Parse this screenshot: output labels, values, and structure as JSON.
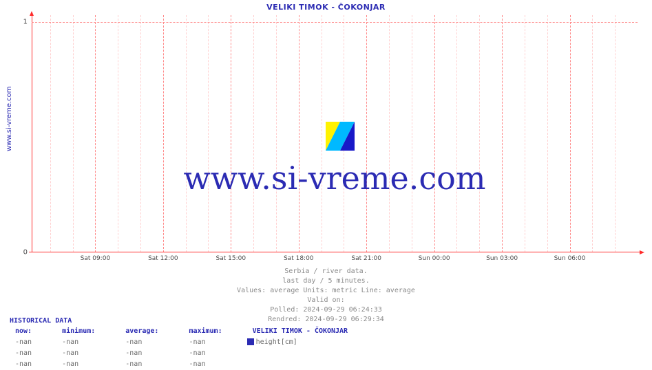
{
  "title": "VELIKI TIMOK -  ČOKONJAR",
  "ylabel": "www.si-vreme.com",
  "watermark": "www.si-vreme.com",
  "colors": {
    "brand_blue": "#2b2bb3",
    "axis_red": "#ff2a2a",
    "grid_major": "#ff8a8a",
    "grid_minor": "#ffd0d0",
    "text_grey": "#6a6a6a",
    "light_grey": "#8a8a8a",
    "bg": "#ffffff"
  },
  "chart": {
    "type": "line",
    "ylim": [
      0,
      1
    ],
    "yticks": [
      0,
      1
    ],
    "x_major_labels": [
      "Sat 09:00",
      "Sat 12:00",
      "Sat 15:00",
      "Sat 18:00",
      "Sat 21:00",
      "Sun 00:00",
      "Sun 03:00",
      "Sun 06:00"
    ],
    "x_major_count": 8,
    "x_minor_per_major": 3,
    "series": []
  },
  "caption": {
    "l1": "Serbia / river data.",
    "l2": "last day / 5 minutes.",
    "l3": "Values: average  Units: metric  Line: average",
    "l4": "Valid on:",
    "l5": "Polled: 2024-09-29 06:24:33",
    "l6": "Rendred: 2024-09-29 06:29:34"
  },
  "historical": {
    "title": "HISTORICAL DATA",
    "columns": [
      "now:",
      "minimum:",
      "average:",
      "maximum:"
    ],
    "series_name": "VELIKI TIMOK -  ČOKONJAR",
    "series_unit": "height[cm]",
    "rows": [
      [
        "-nan",
        "-nan",
        "-nan",
        "-nan"
      ],
      [
        "-nan",
        "-nan",
        "-nan",
        "-nan"
      ],
      [
        "-nan",
        "-nan",
        "-nan",
        "-nan"
      ]
    ]
  }
}
